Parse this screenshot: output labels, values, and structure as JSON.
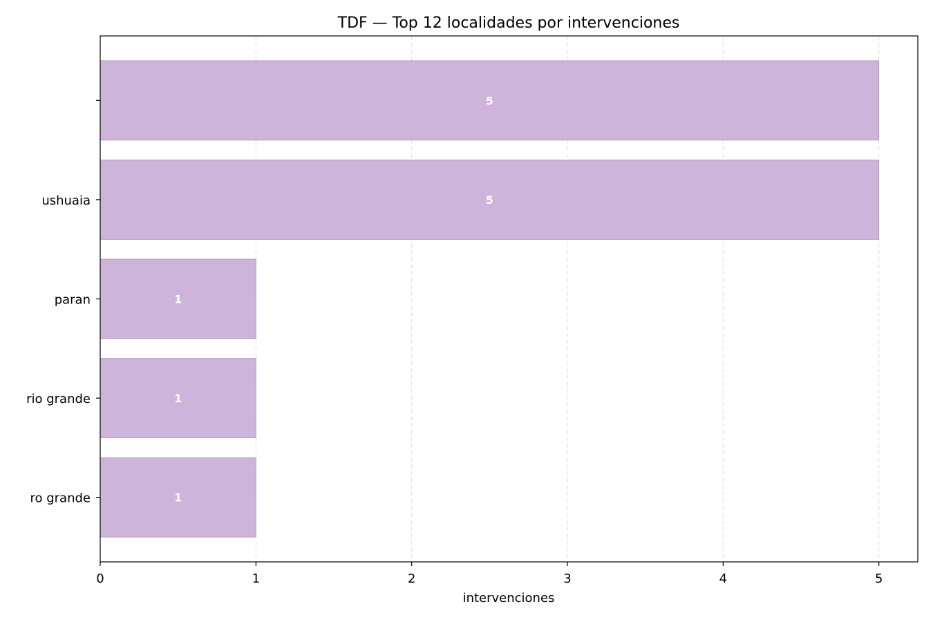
{
  "chart_data": {
    "type": "bar",
    "orientation": "horizontal",
    "title": "TDF — Top 12 localidades por intervenciones",
    "xlabel": "intervenciones",
    "ylabel": "",
    "categories": [
      "",
      "ushuaia",
      "paran",
      "rio grande",
      "ro grande"
    ],
    "values": [
      5,
      5,
      1,
      1,
      1
    ],
    "xlim": [
      0,
      5.25
    ],
    "xticks": [
      0,
      1,
      2,
      3,
      4,
      5
    ],
    "grid": "x-dashed",
    "legend": "none",
    "colors": {
      "bar_fill": "#ceb4db",
      "bar_edge": "#a98bb8",
      "bar_label": "#ffffff",
      "grid": "#dddddd",
      "axis": "#000000"
    }
  }
}
